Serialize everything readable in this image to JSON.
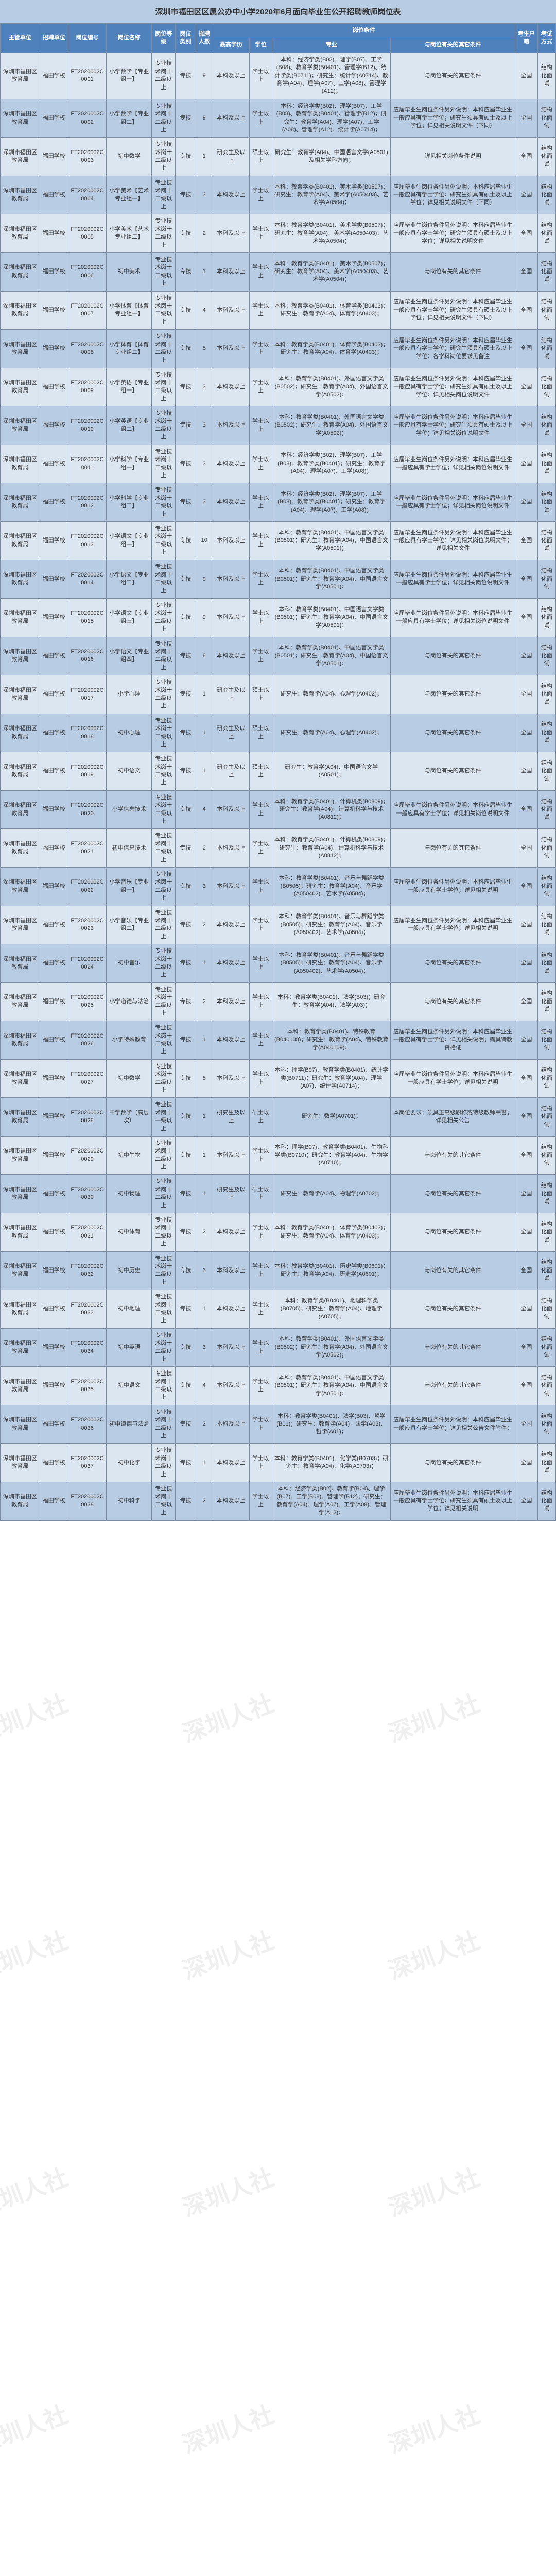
{
  "title": "深圳市福田区区属公办中小学2020年6月面向毕业生公开招聘教师岗位表",
  "header_group": "岗位条件",
  "cols": [
    "主管单位",
    "招聘单位",
    "岗位编号",
    "岗位名称",
    "岗位等级",
    "岗位类别",
    "拟聘人数",
    "最高学历",
    "学位",
    "专业",
    "与岗位有关的其它条件",
    "考生户籍",
    "考试方式"
  ],
  "r": [
    [
      "深圳市福田区教育局",
      "福田学校",
      "FT2020002C0001",
      "小学数学【专业组一】",
      "专业技术岗十二级以上",
      "专技",
      "9",
      "本科及以上",
      "学士以上",
      "本科：经济学类(B02)、理学(B07)、工学(B08)、教育学类(B0401)、管理学(B12)、统计学类(B0711)；研究生：统计学(A0714)、教育学(A04)、理学(A07)、工学(A08)、管理学(A12)；",
      "与岗位有关的其它条件",
      "全国",
      "结构化面试"
    ],
    [
      "深圳市福田区教育局",
      "福田学校",
      "FT2020002C0002",
      "小学数学【专业组二】",
      "专业技术岗十二级以上",
      "专技",
      "9",
      "本科及以上",
      "学士以上",
      "本科：经济学类(B02)、理学(B07)、工学(B08)、教育学类(B0401)、管理学(B12)；研究生：教育学(A04)、理学(A07)、工学(A08)、管理学(A12)、统计学(A0714)；",
      "应届毕业生岗位条件另外说明：本科应届毕业生一般应具有学士学位；研究生须具有硕士及以上学位；详见相关说明文件（下同）",
      "全国",
      "结构化面试"
    ],
    [
      "深圳市福田区教育局",
      "福田学校",
      "FT2020002C0003",
      "初中数学",
      "专业技术岗十二级以上",
      "专技",
      "1",
      "研究生及以上",
      "硕士以上",
      "研究生：教育学(A04)、中国语言文学(A0501)及相关学科方向；",
      "详见相关岗位条件说明",
      "全国",
      "结构化面试"
    ],
    [
      "深圳市福田区教育局",
      "福田学校",
      "FT2020002C0004",
      "小学美术【艺术专业组一】",
      "专业技术岗十二级以上",
      "专技",
      "3",
      "本科及以上",
      "学士以上",
      "本科：教育学类(B0401)、美术学类(B0507)；研究生：教育学(A04)、美术学(A050403)、艺术学(A0504)；",
      "应届毕业生岗位条件另外说明：本科应届毕业生一般应具有学士学位；研究生须具有硕士及以上学位；详见相关说明文件（下同）",
      "全国",
      "结构化面试"
    ],
    [
      "深圳市福田区教育局",
      "福田学校",
      "FT2020002C0005",
      "小学美术【艺术专业组二】",
      "专业技术岗十二级以上",
      "专技",
      "2",
      "本科及以上",
      "学士以上",
      "本科：教育学类(B0401)、美术学类(B0507)；研究生：教育学(A04)、美术学(A050403)、艺术学(A0504)；",
      "应届毕业生岗位条件另外说明：本科应届毕业生一般应具有学士学位；研究生须具有硕士及以上学位；详见相关说明文件",
      "全国",
      "结构化面试"
    ],
    [
      "深圳市福田区教育局",
      "福田学校",
      "FT2020002C0006",
      "初中美术",
      "专业技术岗十二级以上",
      "专技",
      "1",
      "本科及以上",
      "学士以上",
      "本科：教育学类(B0401)、美术学类(B0507)；研究生：教育学(A04)、美术学(A050403)、艺术学(A0504)；",
      "与岗位有关的其它条件",
      "全国",
      "结构化面试"
    ],
    [
      "深圳市福田区教育局",
      "福田学校",
      "FT2020002C0007",
      "小学体育【体育专业组一】",
      "专业技术岗十二级以上",
      "专技",
      "4",
      "本科及以上",
      "学士以上",
      "本科：教育学类(B0401)、体育学类(B0403)；研究生：教育学(A04)、体育学(A0403)；",
      "应届毕业生岗位条件另外说明：本科应届毕业生一般应具有学士学位；研究生须具有硕士及以上学位；详见相关说明文件（下同）",
      "全国",
      "结构化面试"
    ],
    [
      "深圳市福田区教育局",
      "福田学校",
      "FT2020002C0008",
      "小学体育【体育专业组二】",
      "专业技术岗十二级以上",
      "专技",
      "5",
      "本科及以上",
      "学士以上",
      "本科：教育学类(B0401)、体育学类(B0403)；研究生：教育学(A04)、体育学(A0403)；",
      "应届毕业生岗位条件另外说明：本科应届毕业生一般应具有学士学位；研究生须具有硕士及以上学位；各学科岗位要求见备注",
      "全国",
      "结构化面试"
    ],
    [
      "深圳市福田区教育局",
      "福田学校",
      "FT2020002C0009",
      "小学英语【专业组一】",
      "专业技术岗十二级以上",
      "专技",
      "3",
      "本科及以上",
      "学士以上",
      "本科：教育学类(B0401)、外国语言文学类(B0502)；研究生：教育学(A04)、外国语言文学(A0502)；",
      "应届毕业生岗位条件另外说明：本科应届毕业生一般应具有学士学位；研究生须具有硕士及以上学位；详见相关岗位说明文件",
      "全国",
      "结构化面试"
    ],
    [
      "深圳市福田区教育局",
      "福田学校",
      "FT2020002C0010",
      "小学英语【专业组二】",
      "专业技术岗十二级以上",
      "专技",
      "3",
      "本科及以上",
      "学士以上",
      "本科：教育学类(B0401)、外国语言文学类(B0502)；研究生：教育学(A04)、外国语言文学(A0502)；",
      "应届毕业生岗位条件另外说明：本科应届毕业生一般应具有学士学位；研究生须具有硕士及以上学位；详见相关岗位说明文件",
      "全国",
      "结构化面试"
    ],
    [
      "深圳市福田区教育局",
      "福田学校",
      "FT2020002C0011",
      "小学科学【专业组一】",
      "专业技术岗十二级以上",
      "专技",
      "3",
      "本科及以上",
      "学士以上",
      "本科：经济学类(B02)、理学(B07)、工学(B08)、教育学类(B0401)；研究生：教育学(A04)、理学(A07)、工学(A08)；",
      "应届毕业生岗位条件另外说明：本科应届毕业生一般应具有学士学位；详见相关岗位说明文件",
      "全国",
      "结构化面试"
    ],
    [
      "深圳市福田区教育局",
      "福田学校",
      "FT2020002C0012",
      "小学科学【专业组二】",
      "专业技术岗十二级以上",
      "专技",
      "3",
      "本科及以上",
      "学士以上",
      "本科：经济学类(B02)、理学(B07)、工学(B08)、教育学类(B0401)；研究生：教育学(A04)、理学(A07)、工学(A08)；",
      "应届毕业生岗位条件另外说明：本科应届毕业生一般应具有学士学位；详见相关岗位说明文件",
      "全国",
      "结构化面试"
    ],
    [
      "深圳市福田区教育局",
      "福田学校",
      "FT2020002C0013",
      "小学语文【专业组一】",
      "专业技术岗十二级以上",
      "专技",
      "10",
      "本科及以上",
      "学士以上",
      "本科：教育学类(B0401)、中国语言文学类(B0501)；研究生：教育学(A04)、中国语言文学(A0501)；",
      "应届毕业生岗位条件另外说明：本科应届毕业生一般应具有学士学位；详见相关岗位说明文件；详见相关文件",
      "全国",
      "结构化面试"
    ],
    [
      "深圳市福田区教育局",
      "福田学校",
      "FT2020002C0014",
      "小学语文【专业组二】",
      "专业技术岗十二级以上",
      "专技",
      "9",
      "本科及以上",
      "学士以上",
      "本科：教育学类(B0401)、中国语言文学类(B0501)；研究生：教育学(A04)、中国语言文学(A0501)；",
      "应届毕业生岗位条件另外说明：本科应届毕业生一般应具有学士学位；详见相关岗位说明文件",
      "全国",
      "结构化面试"
    ],
    [
      "深圳市福田区教育局",
      "福田学校",
      "FT2020002C0015",
      "小学语文【专业组三】",
      "专业技术岗十二级以上",
      "专技",
      "9",
      "本科及以上",
      "学士以上",
      "本科：教育学类(B0401)、中国语言文学类(B0501)；研究生：教育学(A04)、中国语言文学(A0501)；",
      "应届毕业生岗位条件另外说明：本科应届毕业生一般应具有学士学位；详见相关岗位说明文件",
      "全国",
      "结构化面试"
    ],
    [
      "深圳市福田区教育局",
      "福田学校",
      "FT2020002C0016",
      "小学语文【专业组四】",
      "专业技术岗十二级以上",
      "专技",
      "8",
      "本科及以上",
      "学士以上",
      "本科：教育学类(B0401)、中国语言文学类(B0501)；研究生：教育学(A04)、中国语言文学(A0501)；",
      "与岗位有关的其它条件",
      "全国",
      "结构化面试"
    ],
    [
      "深圳市福田区教育局",
      "福田学校",
      "FT2020002C0017",
      "小学心理",
      "专业技术岗十二级以上",
      "专技",
      "1",
      "研究生及以上",
      "硕士以上",
      "研究生：教育学(A04)、心理学(A0402)；",
      "与岗位有关的其它条件",
      "全国",
      "结构化面试"
    ],
    [
      "深圳市福田区教育局",
      "福田学校",
      "FT2020002C0018",
      "初中心理",
      "专业技术岗十二级以上",
      "专技",
      "1",
      "研究生及以上",
      "硕士以上",
      "研究生：教育学(A04)、心理学(A0402)；",
      "与岗位有关的其它条件",
      "全国",
      "结构化面试"
    ],
    [
      "深圳市福田区教育局",
      "福田学校",
      "FT2020002C0019",
      "初中语文",
      "专业技术岗十二级以上",
      "专技",
      "1",
      "研究生及以上",
      "硕士以上",
      "研究生：教育学(A04)、中国语言文学(A0501)；",
      "与岗位有关的其它条件",
      "全国",
      "结构化面试"
    ],
    [
      "深圳市福田区教育局",
      "福田学校",
      "FT2020002C0020",
      "小学信息技术",
      "专业技术岗十二级以上",
      "专技",
      "4",
      "本科及以上",
      "学士以上",
      "本科：教育学类(B0401)、计算机类(B0809)；研究生：教育学(A04)、计算机科学与技术(A0812)；",
      "应届毕业生岗位条件另外说明：本科应届毕业生一般应具有学士学位；详见相关岗位说明文件",
      "全国",
      "结构化面试"
    ],
    [
      "深圳市福田区教育局",
      "福田学校",
      "FT2020002C0021",
      "初中信息技术",
      "专业技术岗十二级以上",
      "专技",
      "2",
      "本科及以上",
      "学士以上",
      "本科：教育学类(B0401)、计算机类(B0809)；研究生：教育学(A04)、计算机科学与技术(A0812)；",
      "与岗位有关的其它条件",
      "全国",
      "结构化面试"
    ],
    [
      "深圳市福田区教育局",
      "福田学校",
      "FT2020002C0022",
      "小学音乐【专业组一】",
      "专业技术岗十二级以上",
      "专技",
      "3",
      "本科及以上",
      "学士以上",
      "本科：教育学类(B0401)、音乐与舞蹈学类(B0505)；研究生：教育学(A04)、音乐学(A050402)、艺术学(A0504)；",
      "应届毕业生岗位条件另外说明：本科应届毕业生一般应具有学士学位；详见相关说明",
      "全国",
      "结构化面试"
    ],
    [
      "深圳市福田区教育局",
      "福田学校",
      "FT2020002C0023",
      "小学音乐【专业组二】",
      "专业技术岗十二级以上",
      "专技",
      "2",
      "本科及以上",
      "学士以上",
      "本科：教育学类(B0401)、音乐与舞蹈学类(B0505)；研究生：教育学(A04)、音乐学(A050402)、艺术学(A0504)；",
      "应届毕业生岗位条件另外说明：本科应届毕业生一般应具有学士学位；详见相关说明",
      "全国",
      "结构化面试"
    ],
    [
      "深圳市福田区教育局",
      "福田学校",
      "FT2020002C0024",
      "初中音乐",
      "专业技术岗十二级以上",
      "专技",
      "1",
      "本科及以上",
      "学士以上",
      "本科：教育学类(B0401)、音乐与舞蹈学类(B0505)；研究生：教育学(A04)、音乐学(A050402)、艺术学(A0504)；",
      "与岗位有关的其它条件",
      "全国",
      "结构化面试"
    ],
    [
      "深圳市福田区教育局",
      "福田学校",
      "FT2020002C0025",
      "小学道德与法治",
      "专业技术岗十二级以上",
      "专技",
      "2",
      "本科及以上",
      "学士以上",
      "本科：教育学类(B0401)、法学(B03)；研究生：教育学(A04)、法学(A03)；",
      "与岗位有关的其它条件",
      "全国",
      "结构化面试"
    ],
    [
      "深圳市福田区教育局",
      "福田学校",
      "FT2020002C0026",
      "小学特殊教育",
      "专业技术岗十二级以上",
      "专技",
      "1",
      "本科及以上",
      "学士以上",
      "本科：教育学类(B0401)、特殊教育(B040108)；研究生：教育学(A04)、特殊教育学(A040109)；",
      "应届毕业生岗位条件另外说明：本科应届毕业生一般应具有学士学位；详见相关说明；需具特教资格证",
      "全国",
      "结构化面试"
    ],
    [
      "深圳市福田区教育局",
      "福田学校",
      "FT2020002C0027",
      "初中数学",
      "专业技术岗十二级以上",
      "专技",
      "5",
      "本科及以上",
      "学士以上",
      "本科：理学(B07)、教育学类(B0401)、统计学类(B0711)；研究生：教育学(A04)、理学(A07)、统计学(A0714)；",
      "应届毕业生岗位条件另外说明：本科应届毕业生一般应具有学士学位；详见相关说明",
      "全国",
      "结构化面试"
    ],
    [
      "深圳市福田区教育局",
      "福田学校",
      "FT2020002C0028",
      "中学数学（高层次）",
      "专业技术岗十一级以上",
      "专技",
      "1",
      "研究生及以上",
      "硕士以上",
      "研究生：数学(A0701)；",
      "本岗位要求：须具正高级职称或特级教师荣誉；详见相关公告",
      "全国",
      "结构化面试"
    ],
    [
      "深圳市福田区教育局",
      "福田学校",
      "FT2020002C0029",
      "初中生物",
      "专业技术岗十二级以上",
      "专技",
      "1",
      "本科及以上",
      "学士以上",
      "本科：理学(B07)、教育学类(B0401)、生物科学类(B0710)；研究生：教育学(A04)、生物学(A0710)；",
      "与岗位有关的其它条件",
      "全国",
      "结构化面试"
    ],
    [
      "深圳市福田区教育局",
      "福田学校",
      "FT2020002C0030",
      "初中物理",
      "专业技术岗十二级以上",
      "专技",
      "1",
      "研究生及以上",
      "硕士以上",
      "研究生：教育学(A04)、物理学(A0702)；",
      "与岗位有关的其它条件",
      "全国",
      "结构化面试"
    ],
    [
      "深圳市福田区教育局",
      "福田学校",
      "FT2020002C0031",
      "初中体育",
      "专业技术岗十二级以上",
      "专技",
      "2",
      "本科及以上",
      "学士以上",
      "本科：教育学类(B0401)、体育学类(B0403)；研究生：教育学(A04)、体育学(A0403)；",
      "与岗位有关的其它条件",
      "全国",
      "结构化面试"
    ],
    [
      "深圳市福田区教育局",
      "福田学校",
      "FT2020002C0032",
      "初中历史",
      "专业技术岗十二级以上",
      "专技",
      "3",
      "本科及以上",
      "学士以上",
      "本科：教育学类(B0401)、历史学类(B0601)；研究生：教育学(A04)、历史学(A0601)；",
      "与岗位有关的其它条件",
      "全国",
      "结构化面试"
    ],
    [
      "深圳市福田区教育局",
      "福田学校",
      "FT2020002C0033",
      "初中地理",
      "专业技术岗十二级以上",
      "专技",
      "1",
      "本科及以上",
      "学士以上",
      "本科：教育学类(B0401)、地理科学类(B0705)；研究生：教育学(A04)、地理学(A0705)；",
      "与岗位有关的其它条件",
      "全国",
      "结构化面试"
    ],
    [
      "深圳市福田区教育局",
      "福田学校",
      "FT2020002C0034",
      "初中英语",
      "专业技术岗十二级以上",
      "专技",
      "3",
      "本科及以上",
      "学士以上",
      "本科：教育学类(B0401)、外国语言文学类(B0502)；研究生：教育学(A04)、外国语言文学(A0502)；",
      "与岗位有关的其它条件",
      "全国",
      "结构化面试"
    ],
    [
      "深圳市福田区教育局",
      "福田学校",
      "FT2020002C0035",
      "初中语文",
      "专业技术岗十二级以上",
      "专技",
      "4",
      "本科及以上",
      "学士以上",
      "本科：教育学类(B0401)、中国语言文学类(B0501)；研究生：教育学(A04)、中国语言文学(A0501)；",
      "与岗位有关的其它条件",
      "全国",
      "结构化面试"
    ],
    [
      "深圳市福田区教育局",
      "福田学校",
      "FT2020002C0036",
      "初中道德与法治",
      "专业技术岗十二级以上",
      "专技",
      "2",
      "本科及以上",
      "学士以上",
      "本科：教育学类(B0401)、法学(B03)、哲学(B01)；研究生：教育学(A04)、法学(A03)、哲学(A01)；",
      "应届毕业生岗位条件另外说明：本科应届毕业生一般应具有学士学位；详见相关公告文件附件；",
      "全国",
      "结构化面试"
    ],
    [
      "深圳市福田区教育局",
      "福田学校",
      "FT2020002C0037",
      "初中化学",
      "专业技术岗十二级以上",
      "专技",
      "1",
      "本科及以上",
      "学士以上",
      "本科：教育学类(B0401)、化学类(B0703)；研究生：教育学(A04)、化学(A0703)；",
      "与岗位有关的其它条件",
      "全国",
      "结构化面试"
    ],
    [
      "深圳市福田区教育局",
      "福田学校",
      "FT2020002C0038",
      "初中科学",
      "专业技术岗十二级以上",
      "专技",
      "2",
      "本科及以上",
      "学士以上",
      "本科：经济学类(B02)、教育学(B04)、理学(B07)、工学(B08)、管理学(B12)；研究生：教育学(A04)、理学(A07)、工学(A08)、管理学(A12)；",
      "应届毕业生岗位条件另外说明：本科应届毕业生一般应具有学士学位；研究生须具有硕士及以上学位；详见相关说明",
      "全国",
      "结构化面试"
    ]
  ],
  "wm_text": "深圳人社"
}
